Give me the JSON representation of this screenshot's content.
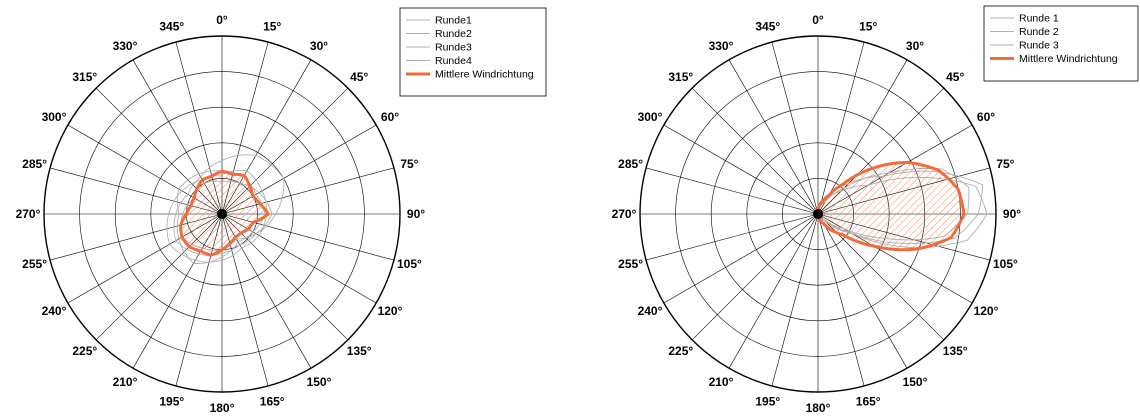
{
  "chart_data": [
    {
      "type": "polar",
      "angle_unit": "degrees",
      "angle_zero": "top",
      "angle_direction": "clockwise",
      "angle_ticks": [
        0,
        15,
        30,
        45,
        60,
        75,
        90,
        105,
        120,
        135,
        150,
        165,
        180,
        195,
        210,
        225,
        240,
        255,
        270,
        285,
        300,
        315,
        330,
        345
      ],
      "angle_tick_labels": [
        "0°",
        "15°",
        "30°",
        "45°",
        "60°",
        "75°",
        "90°",
        "105°",
        "120°",
        "135°",
        "150°",
        "165°",
        "180°",
        "195°",
        "210°",
        "225°",
        "240°",
        "255°",
        "270°",
        "285°",
        "300°",
        "315°",
        "330°",
        "345°"
      ],
      "rlim": [
        0,
        1
      ],
      "radial_gridlines": [
        0.2,
        0.4,
        0.6,
        0.8,
        1.0
      ],
      "grid": true,
      "legend_position": "top-right",
      "legend": [
        "Runde1",
        "Runde2",
        "Runde3",
        "Runde4",
        "Mittlere Windrichtung"
      ],
      "series": [
        {
          "name": "Runde1",
          "color": "#b0b0b0",
          "angles": [
            0,
            30,
            60,
            90,
            120,
            150,
            180,
            210,
            240,
            270,
            300,
            330
          ],
          "r": [
            0.22,
            0.28,
            0.26,
            0.25,
            0.24,
            0.22,
            0.26,
            0.3,
            0.34,
            0.3,
            0.26,
            0.22
          ]
        },
        {
          "name": "Runde2",
          "color": "#b0b0b0",
          "angles": [
            0,
            30,
            60,
            90,
            120,
            150,
            180,
            210,
            240,
            270,
            300,
            330
          ],
          "r": [
            0.3,
            0.38,
            0.4,
            0.3,
            0.22,
            0.2,
            0.22,
            0.26,
            0.3,
            0.26,
            0.22,
            0.24
          ]
        },
        {
          "name": "Runde3",
          "color": "#b0b0b0",
          "angles": [
            0,
            30,
            60,
            90,
            120,
            150,
            180,
            210,
            240,
            270,
            300,
            330
          ],
          "r": [
            0.24,
            0.24,
            0.22,
            0.24,
            0.2,
            0.18,
            0.24,
            0.32,
            0.28,
            0.24,
            0.28,
            0.26
          ]
        },
        {
          "name": "Runde4",
          "color": "#b0b0b0",
          "angles": [
            0,
            30,
            60,
            90,
            120,
            150,
            180,
            210,
            240,
            270,
            300,
            330
          ],
          "r": [
            0.18,
            0.2,
            0.24,
            0.28,
            0.22,
            0.16,
            0.2,
            0.22,
            0.26,
            0.22,
            0.18,
            0.2
          ]
        },
        {
          "name": "Mittlere Windrichtung",
          "color": "#f26b3a",
          "hatched_fill": true,
          "angles": [
            0,
            15,
            30,
            45,
            60,
            75,
            90,
            105,
            120,
            135,
            150,
            165,
            180,
            195,
            210,
            225,
            240,
            255,
            270,
            285,
            300,
            315,
            330,
            345
          ],
          "r": [
            0.24,
            0.23,
            0.25,
            0.22,
            0.2,
            0.22,
            0.26,
            0.18,
            0.17,
            0.15,
            0.15,
            0.17,
            0.2,
            0.24,
            0.24,
            0.26,
            0.26,
            0.24,
            0.2,
            0.18,
            0.18,
            0.2,
            0.22,
            0.22
          ]
        }
      ]
    },
    {
      "type": "polar",
      "angle_unit": "degrees",
      "angle_zero": "top",
      "angle_direction": "clockwise",
      "angle_ticks": [
        0,
        15,
        30,
        45,
        60,
        75,
        90,
        105,
        120,
        135,
        150,
        165,
        180,
        195,
        210,
        225,
        240,
        255,
        270,
        285,
        300,
        315,
        330,
        345
      ],
      "angle_tick_labels": [
        "0°",
        "15°",
        "30°",
        "45°",
        "60°",
        "75°",
        "90°",
        "105°",
        "120°",
        "135°",
        "150°",
        "165°",
        "180°",
        "195°",
        "210°",
        "225°",
        "240°",
        "255°",
        "270°",
        "285°",
        "300°",
        "315°",
        "330°",
        "345°"
      ],
      "rlim": [
        0,
        1
      ],
      "radial_gridlines": [
        0.2,
        0.4,
        0.6,
        0.8,
        1.0
      ],
      "grid": true,
      "legend_position": "top-right",
      "legend": [
        "Runde 1",
        "Runde 2",
        "Runde 3",
        "Mittlere Windrichtung"
      ],
      "series": [
        {
          "name": "Runde 1",
          "color": "#b0b0b0",
          "angles": [
            0,
            15,
            30,
            45,
            60,
            70,
            80,
            90,
            100,
            110,
            120,
            135,
            180,
            225,
            270,
            315,
            345
          ],
          "r": [
            0.02,
            0.05,
            0.1,
            0.18,
            0.32,
            0.6,
            0.9,
            0.95,
            0.85,
            0.55,
            0.22,
            0.05,
            0.02,
            0.02,
            0.02,
            0.02,
            0.02
          ]
        },
        {
          "name": "Runde 2",
          "color": "#b0b0b0",
          "angles": [
            0,
            15,
            30,
            45,
            60,
            70,
            80,
            90,
            100,
            110,
            120,
            135,
            180,
            225,
            270,
            315,
            345
          ],
          "r": [
            0.03,
            0.06,
            0.12,
            0.24,
            0.42,
            0.7,
            0.94,
            0.9,
            0.78,
            0.48,
            0.2,
            0.04,
            0.02,
            0.02,
            0.02,
            0.03,
            0.03
          ]
        },
        {
          "name": "Runde 3",
          "color": "#b0b0b0",
          "angles": [
            0,
            15,
            30,
            45,
            60,
            70,
            80,
            90,
            100,
            110,
            120,
            135,
            180,
            225,
            270,
            315,
            345
          ],
          "r": [
            0.02,
            0.04,
            0.08,
            0.2,
            0.46,
            0.74,
            0.86,
            0.84,
            0.72,
            0.4,
            0.16,
            0.04,
            0.02,
            0.02,
            0.02,
            0.02,
            0.02
          ]
        },
        {
          "name": "Mittlere Windrichtung",
          "color": "#f26b3a",
          "hatched_fill": true,
          "angles": [
            0,
            10,
            20,
            30,
            40,
            50,
            60,
            70,
            80,
            90,
            100,
            110,
            120,
            130,
            150,
            180,
            210,
            240,
            270,
            300,
            330,
            350
          ],
          "r": [
            0.03,
            0.05,
            0.08,
            0.12,
            0.22,
            0.4,
            0.58,
            0.72,
            0.8,
            0.82,
            0.76,
            0.58,
            0.36,
            0.18,
            0.06,
            0.02,
            0.02,
            0.02,
            0.02,
            0.02,
            0.02,
            0.03
          ]
        }
      ]
    }
  ]
}
